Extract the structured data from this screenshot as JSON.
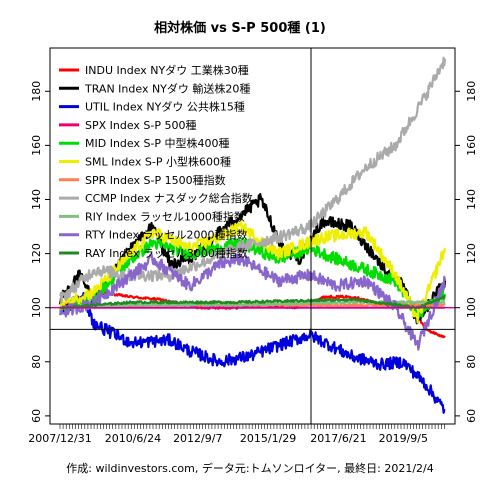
{
  "chart_data": {
    "type": "line",
    "title": "相対株価 vs S-P 500種 (1)",
    "caption": "作成: wildinvestors.com, データ元:トムソンロイター, 最終日: 2021/2/4",
    "x_tick_labels": [
      "2007/12/31",
      "2010/6/24",
      "2012/9/7",
      "2015/1/29",
      "2017/6/21",
      "2019/9/5"
    ],
    "x_range": [
      "2007-12-31",
      "2021-02-04"
    ],
    "y_ticks": [
      60,
      80,
      100,
      120,
      140,
      160,
      180
    ],
    "ylim": [
      57,
      196
    ],
    "crosshair": {
      "x": "2016-07-15",
      "y": 92
    },
    "baseline": 100,
    "grid": false,
    "legend_position": "top-left",
    "series": [
      {
        "name": "INDU Index NYダウ 工業株30種",
        "color": "#ff0000",
        "points": [
          [
            "2008-01-01",
            100
          ],
          [
            "2009-03-01",
            106
          ],
          [
            "2010-06-01",
            104
          ],
          [
            "2011-06-01",
            103
          ],
          [
            "2012-09-01",
            100
          ],
          [
            "2014-01-01",
            100
          ],
          [
            "2015-01-01",
            101
          ],
          [
            "2016-01-01",
            100
          ],
          [
            "2017-01-01",
            104
          ],
          [
            "2018-01-01",
            104
          ],
          [
            "2019-01-01",
            101
          ],
          [
            "2020-01-01",
            101
          ],
          [
            "2020-06-01",
            92
          ],
          [
            "2021-02-04",
            89
          ]
        ]
      },
      {
        "name": "TRAN Index NYダウ 輸送株20種",
        "color": "#000000",
        "points": [
          [
            "2008-01-01",
            103
          ],
          [
            "2008-09-01",
            112
          ],
          [
            "2009-03-01",
            102
          ],
          [
            "2010-06-01",
            122
          ],
          [
            "2011-03-01",
            130
          ],
          [
            "2011-10-01",
            116
          ],
          [
            "2012-06-01",
            118
          ],
          [
            "2013-06-01",
            128
          ],
          [
            "2014-11-01",
            140
          ],
          [
            "2015-08-01",
            122
          ],
          [
            "2016-03-01",
            118
          ],
          [
            "2016-12-01",
            132
          ],
          [
            "2017-12-01",
            130
          ],
          [
            "2018-12-01",
            116
          ],
          [
            "2019-09-01",
            108
          ],
          [
            "2020-03-01",
            95
          ],
          [
            "2021-02-04",
            110
          ]
        ]
      },
      {
        "name": "UTIL Index NYダウ 公共株15種",
        "color": "#0000dd",
        "points": [
          [
            "2008-01-01",
            98
          ],
          [
            "2008-10-01",
            105
          ],
          [
            "2009-03-01",
            94
          ],
          [
            "2010-06-01",
            87
          ],
          [
            "2011-10-01",
            88
          ],
          [
            "2012-06-01",
            84
          ],
          [
            "2013-06-01",
            80
          ],
          [
            "2014-06-01",
            82
          ],
          [
            "2015-03-01",
            85
          ],
          [
            "2016-07-01",
            90
          ],
          [
            "2017-12-01",
            82
          ],
          [
            "2018-12-01",
            79
          ],
          [
            "2019-09-01",
            80
          ],
          [
            "2020-06-01",
            72
          ],
          [
            "2021-02-04",
            62
          ]
        ]
      },
      {
        "name": "SPX Index S-P 500種",
        "color": "#ee0077",
        "points": [
          [
            "2008-01-01",
            100
          ],
          [
            "2021-02-04",
            100
          ]
        ]
      },
      {
        "name": "MID Index S-P 中型株400種",
        "color": "#00dd00",
        "points": [
          [
            "2008-01-01",
            99
          ],
          [
            "2009-03-01",
            104
          ],
          [
            "2010-06-01",
            118
          ],
          [
            "2011-03-01",
            124
          ],
          [
            "2012-06-01",
            120
          ],
          [
            "2013-06-01",
            122
          ],
          [
            "2014-03-01",
            124
          ],
          [
            "2015-06-01",
            118
          ],
          [
            "2016-07-01",
            122
          ],
          [
            "2017-06-01",
            118
          ],
          [
            "2018-06-01",
            114
          ],
          [
            "2019-06-01",
            110
          ],
          [
            "2020-03-01",
            97
          ],
          [
            "2021-02-04",
            105
          ]
        ]
      },
      {
        "name": "SML Index S-P 小型株600種",
        "color": "#eeee00",
        "points": [
          [
            "2008-01-01",
            101
          ],
          [
            "2009-03-01",
            106
          ],
          [
            "2010-06-01",
            120
          ],
          [
            "2011-03-01",
            128
          ],
          [
            "2012-06-01",
            122
          ],
          [
            "2013-06-01",
            126
          ],
          [
            "2014-03-01",
            130
          ],
          [
            "2015-06-01",
            120
          ],
          [
            "2016-12-01",
            126
          ],
          [
            "2018-06-01",
            128
          ],
          [
            "2019-06-01",
            112
          ],
          [
            "2020-03-01",
            96
          ],
          [
            "2021-02-04",
            122
          ]
        ]
      },
      {
        "name": "SPR Index S-P 1500種指数",
        "color": "#ff7f50",
        "points": [
          [
            "2008-01-01",
            100
          ],
          [
            "2010-06-01",
            101
          ],
          [
            "2014-01-01",
            101
          ],
          [
            "2018-01-01",
            101
          ],
          [
            "2021-02-04",
            101
          ]
        ]
      },
      {
        "name": "CCMP Index ナスダック総合指数",
        "color": "#aaaaaa",
        "points": [
          [
            "2008-01-01",
            103
          ],
          [
            "2009-03-01",
            114
          ],
          [
            "2010-06-01",
            112
          ],
          [
            "2011-10-01",
            112
          ],
          [
            "2012-09-01",
            116
          ],
          [
            "2014-01-01",
            122
          ],
          [
            "2015-06-01",
            126
          ],
          [
            "2016-07-01",
            130
          ],
          [
            "2017-06-01",
            140
          ],
          [
            "2018-06-01",
            152
          ],
          [
            "2019-06-01",
            160
          ],
          [
            "2020-06-01",
            178
          ],
          [
            "2021-02-04",
            192
          ]
        ]
      },
      {
        "name": "RIY Index ラッセル1000種指数",
        "color": "#7fbf7f",
        "points": [
          [
            "2008-01-01",
            100
          ],
          [
            "2010-06-01",
            101
          ],
          [
            "2014-01-01",
            101
          ],
          [
            "2018-01-01",
            102
          ],
          [
            "2021-02-04",
            102
          ]
        ]
      },
      {
        "name": "RTY Index ラッセル2000種指数",
        "color": "#8866cc",
        "points": [
          [
            "2008-01-01",
            98
          ],
          [
            "2009-03-01",
            102
          ],
          [
            "2010-06-01",
            112
          ],
          [
            "2011-03-01",
            118
          ],
          [
            "2012-06-01",
            108
          ],
          [
            "2013-06-01",
            116
          ],
          [
            "2014-03-01",
            118
          ],
          [
            "2015-06-01",
            110
          ],
          [
            "2016-07-01",
            112
          ],
          [
            "2017-06-01",
            108
          ],
          [
            "2018-06-01",
            110
          ],
          [
            "2019-06-01",
            100
          ],
          [
            "2020-03-01",
            86
          ],
          [
            "2021-02-04",
            110
          ]
        ]
      },
      {
        "name": "RAY Index ラッセル3000種指数",
        "color": "#228822",
        "points": [
          [
            "2008-01-01",
            100
          ],
          [
            "2010-06-01",
            102
          ],
          [
            "2014-01-01",
            102
          ],
          [
            "2018-01-01",
            103
          ],
          [
            "2020-03-01",
            100
          ],
          [
            "2021-02-04",
            104
          ]
        ]
      }
    ]
  }
}
